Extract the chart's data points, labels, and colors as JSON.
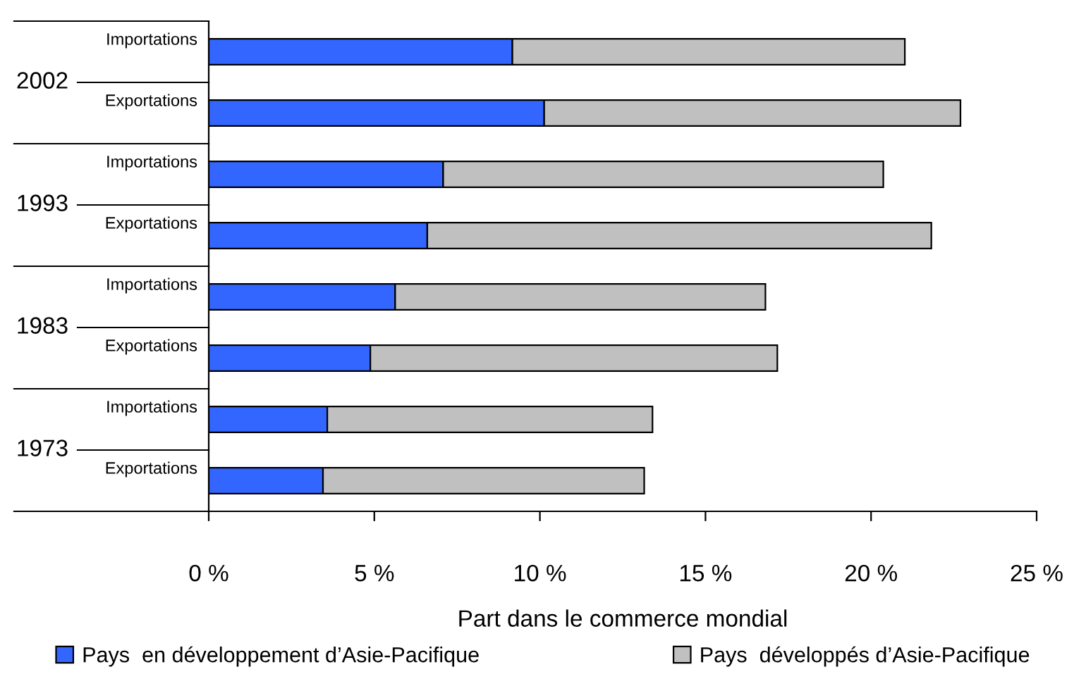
{
  "chart_data": {
    "type": "bar",
    "orientation": "horizontal",
    "stacked": true,
    "categories": [
      "Importations",
      "Exportations",
      "Importations",
      "Exportations",
      "Importations",
      "Exportations",
      "Importations",
      "Exportations"
    ],
    "annotations": [
      "2002",
      "1993",
      "1983",
      "1973"
    ],
    "series": [
      {
        "name": "Pays  en développement d’Asie-Pacifique",
        "color": "#3366ff",
        "values": [
          9.17,
          10.13,
          7.08,
          6.6,
          5.63,
          4.88,
          3.58,
          3.45
        ]
      },
      {
        "name": "Pays  développés d’Asie-Pacifique",
        "color": "#c0c0c0",
        "values": [
          11.85,
          12.57,
          13.29,
          15.22,
          11.18,
          12.29,
          9.82,
          9.7
        ]
      }
    ],
    "xlim": [
      0,
      25
    ],
    "xticks": [
      {
        "value": 0,
        "label": "0 %"
      },
      {
        "value": 5,
        "label": "5 %"
      },
      {
        "value": 10,
        "label": "10 %"
      },
      {
        "value": 15,
        "label": "15 %"
      },
      {
        "value": 20,
        "label": "20 %"
      },
      {
        "value": 25,
        "label": "25 %"
      }
    ],
    "xlabel": "Part dans le commerce mondial",
    "grid": false,
    "legend": "bottom"
  }
}
